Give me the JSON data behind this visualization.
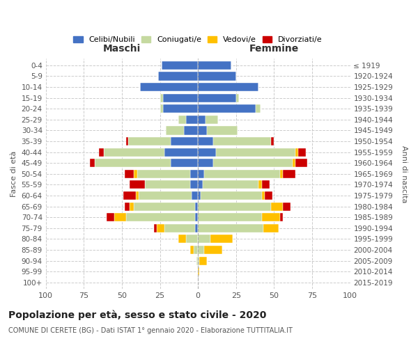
{
  "age_groups": [
    "0-4",
    "5-9",
    "10-14",
    "15-19",
    "20-24",
    "25-29",
    "30-34",
    "35-39",
    "40-44",
    "45-49",
    "50-54",
    "55-59",
    "60-64",
    "65-69",
    "70-74",
    "75-79",
    "80-84",
    "85-89",
    "90-94",
    "95-99",
    "100+"
  ],
  "birth_years": [
    "2015-2019",
    "2010-2014",
    "2005-2009",
    "2000-2004",
    "1995-1999",
    "1990-1994",
    "1985-1989",
    "1980-1984",
    "1975-1979",
    "1970-1974",
    "1965-1969",
    "1960-1964",
    "1955-1959",
    "1950-1954",
    "1945-1949",
    "1940-1944",
    "1935-1939",
    "1930-1934",
    "1925-1929",
    "1920-1924",
    "≤ 1919"
  ],
  "maschi": {
    "celibi": [
      24,
      26,
      38,
      23,
      23,
      8,
      9,
      18,
      22,
      18,
      5,
      5,
      4,
      2,
      2,
      2,
      0,
      0,
      0,
      0,
      0
    ],
    "coniugati": [
      0,
      0,
      0,
      2,
      2,
      5,
      12,
      28,
      40,
      50,
      35,
      30,
      35,
      40,
      45,
      20,
      8,
      3,
      1,
      0,
      0
    ],
    "vedovi": [
      0,
      0,
      0,
      0,
      0,
      0,
      0,
      0,
      0,
      0,
      2,
      0,
      2,
      3,
      8,
      5,
      5,
      2,
      0,
      0,
      0
    ],
    "divorziati": [
      0,
      0,
      0,
      0,
      0,
      0,
      0,
      1,
      3,
      3,
      6,
      10,
      8,
      3,
      5,
      2,
      0,
      0,
      0,
      0,
      0
    ]
  },
  "femmine": {
    "nubili": [
      22,
      25,
      40,
      25,
      38,
      5,
      6,
      10,
      12,
      10,
      4,
      3,
      2,
      0,
      0,
      0,
      0,
      0,
      0,
      0,
      0
    ],
    "coniugate": [
      0,
      0,
      0,
      2,
      3,
      8,
      20,
      38,
      52,
      52,
      50,
      37,
      40,
      48,
      42,
      43,
      8,
      4,
      1,
      0,
      0
    ],
    "vedove": [
      0,
      0,
      0,
      0,
      0,
      0,
      0,
      0,
      2,
      2,
      2,
      2,
      2,
      8,
      12,
      10,
      15,
      12,
      5,
      1,
      0
    ],
    "divorziate": [
      0,
      0,
      0,
      0,
      0,
      0,
      0,
      2,
      5,
      8,
      8,
      5,
      5,
      5,
      2,
      0,
      0,
      0,
      0,
      0,
      0
    ]
  },
  "colors": {
    "celibi": "#4472c4",
    "coniugati": "#c5d9a0",
    "vedovi": "#ffc000",
    "divorziati": "#cc0000"
  },
  "xlim": 100,
  "title": "Popolazione per età, sesso e stato civile - 2020",
  "subtitle": "COMUNE DI CERETE (BG) - Dati ISTAT 1° gennaio 2020 - Elaborazione TUTTITALIA.IT",
  "ylabel_left": "Fasce di età",
  "ylabel_right": "Anni di nascita",
  "xlabel_left": "Maschi",
  "xlabel_right": "Femmine"
}
